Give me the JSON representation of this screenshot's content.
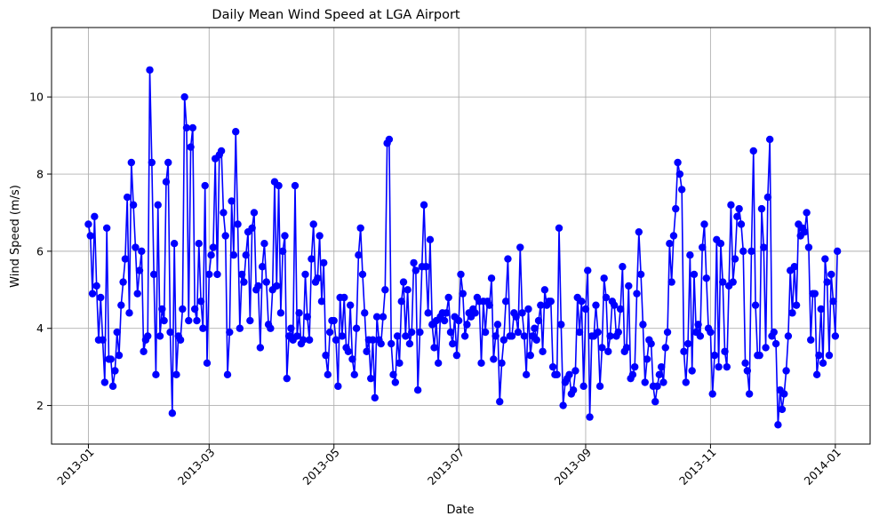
{
  "chart_data": {
    "type": "line",
    "title": "Daily Mean Wind Speed at LGA Airport",
    "xlabel": "Date",
    "ylabel": "Wind Speed (m/s)",
    "xlim": [
      "2012-12-14",
      "2014-01-18"
    ],
    "ylim": [
      1.0,
      11.8
    ],
    "x_ticks": [
      "2013-01",
      "2013-03",
      "2013-05",
      "2013-07",
      "2013-09",
      "2013-11",
      "2014-01"
    ],
    "y_ticks": [
      2,
      4,
      6,
      8,
      10
    ],
    "grid": true,
    "marker": "circle",
    "colors": {
      "series": "#0000ff",
      "grid": "#b0b0b0",
      "axes": "#000000"
    },
    "series": [
      {
        "x_start": "2013-01-01",
        "x_step_days": 1,
        "values": [
          6.7,
          6.4,
          4.9,
          6.9,
          5.1,
          3.7,
          4.8,
          3.7,
          2.6,
          6.6,
          3.2,
          3.2,
          2.5,
          2.9,
          3.9,
          3.3,
          4.6,
          5.2,
          5.8,
          7.4,
          4.4,
          8.3,
          7.2,
          6.1,
          4.9,
          5.5,
          6.0,
          3.4,
          3.7,
          3.8,
          10.7,
          8.3,
          5.4,
          2.8,
          7.2,
          3.8,
          4.5,
          4.2,
          7.8,
          8.3,
          3.9,
          1.8,
          6.2,
          2.8,
          3.8,
          3.7,
          4.5,
          10.0,
          9.2,
          4.2,
          8.7,
          9.2,
          4.5,
          4.2,
          6.2,
          4.7,
          4.0,
          7.7,
          3.1,
          5.4,
          5.9,
          6.1,
          8.4,
          5.4,
          8.5,
          8.6,
          7.0,
          6.4,
          2.8,
          3.9,
          7.3,
          5.9,
          9.1,
          6.7,
          4.0,
          5.4,
          5.2,
          5.9,
          6.5,
          4.2,
          6.6,
          7.0,
          5.0,
          5.1,
          3.5,
          5.6,
          6.2,
          5.2,
          4.1,
          4.0,
          5.0,
          7.8,
          5.1,
          7.7,
          4.4,
          6.0,
          6.4,
          2.7,
          3.8,
          4.0,
          3.7,
          7.7,
          3.8,
          4.4,
          3.6,
          3.7,
          5.4,
          4.3,
          3.7,
          5.8,
          6.7,
          5.2,
          5.3,
          6.4,
          4.7,
          5.7,
          3.3,
          2.8,
          3.9,
          4.2,
          4.2,
          3.7,
          2.5,
          4.8,
          3.8,
          4.8,
          3.5,
          3.4,
          4.6,
          3.2,
          2.8,
          4.0,
          5.9,
          6.6,
          5.4,
          4.4,
          3.4,
          3.7,
          2.7,
          3.7,
          2.2,
          4.3,
          3.7,
          3.6,
          4.3,
          5.0,
          8.8,
          8.9,
          3.6,
          2.8,
          2.6,
          3.8,
          3.1,
          4.7,
          5.2,
          3.8,
          5.0,
          3.6,
          3.9,
          5.7,
          5.5,
          2.4,
          3.9,
          5.6,
          7.2,
          5.6,
          4.4,
          6.3,
          4.1,
          3.5,
          4.2,
          3.1,
          4.3,
          4.4,
          4.2,
          4.4,
          4.8,
          3.9,
          3.6,
          4.3,
          3.3,
          4.2,
          5.4,
          4.9,
          3.8,
          4.1,
          4.4,
          4.3,
          4.5,
          4.4,
          4.8,
          4.7,
          3.1,
          4.7,
          3.9,
          4.7,
          4.6,
          5.3,
          3.2,
          3.8,
          4.1,
          2.1,
          3.1,
          3.7,
          4.7,
          5.8,
          3.8,
          3.8,
          4.4,
          4.3,
          3.9,
          6.1,
          4.4,
          3.8,
          2.8,
          4.5,
          3.3,
          3.8,
          4.0,
          3.7,
          4.2,
          4.6,
          3.4,
          5.0,
          4.6,
          4.7,
          4.7,
          3.0,
          2.8,
          2.8,
          6.6,
          4.1,
          2.0,
          2.6,
          2.7,
          2.8,
          2.3,
          2.4,
          2.9,
          4.8,
          3.9,
          4.7,
          2.5,
          4.5,
          5.5,
          1.7,
          3.8,
          3.8,
          4.6,
          3.9,
          2.5,
          3.5,
          5.3,
          4.8,
          3.4,
          3.8,
          4.7,
          4.6,
          3.8,
          3.9,
          4.5,
          5.6,
          3.4,
          3.5,
          5.1,
          2.7,
          2.8,
          3.0,
          4.9,
          6.5,
          5.4,
          4.1,
          2.6,
          3.2,
          3.7,
          3.6,
          2.5,
          2.1,
          2.5,
          2.8,
          3.0,
          2.6,
          3.5,
          3.9,
          6.2,
          5.2,
          6.4,
          7.1,
          8.3,
          8.0,
          7.6,
          3.4,
          2.6,
          3.6,
          5.9,
          2.9,
          5.4,
          3.9,
          4.1,
          3.8,
          6.1,
          6.7,
          5.3,
          4.0,
          3.9,
          2.3,
          3.3,
          6.3,
          3.0,
          6.2,
          5.2,
          3.4,
          3.0,
          5.1,
          7.2,
          5.2,
          5.8,
          6.9,
          7.1,
          6.7,
          6.0,
          3.1,
          2.9,
          2.3,
          6.0,
          8.6,
          4.6,
          3.3,
          3.3,
          7.1,
          6.1,
          3.5,
          7.4,
          8.9,
          3.8,
          3.9,
          3.6,
          1.5,
          2.4,
          1.9,
          2.3,
          2.9,
          3.8,
          5.5,
          4.4,
          5.6,
          4.6,
          6.7,
          6.4,
          6.6,
          6.5,
          7.0,
          6.1,
          3.7,
          4.9,
          4.9,
          2.8,
          3.3,
          4.5,
          3.1,
          5.8,
          5.2,
          3.3,
          5.4,
          4.7,
          3.8,
          6.0
        ]
      }
    ]
  }
}
